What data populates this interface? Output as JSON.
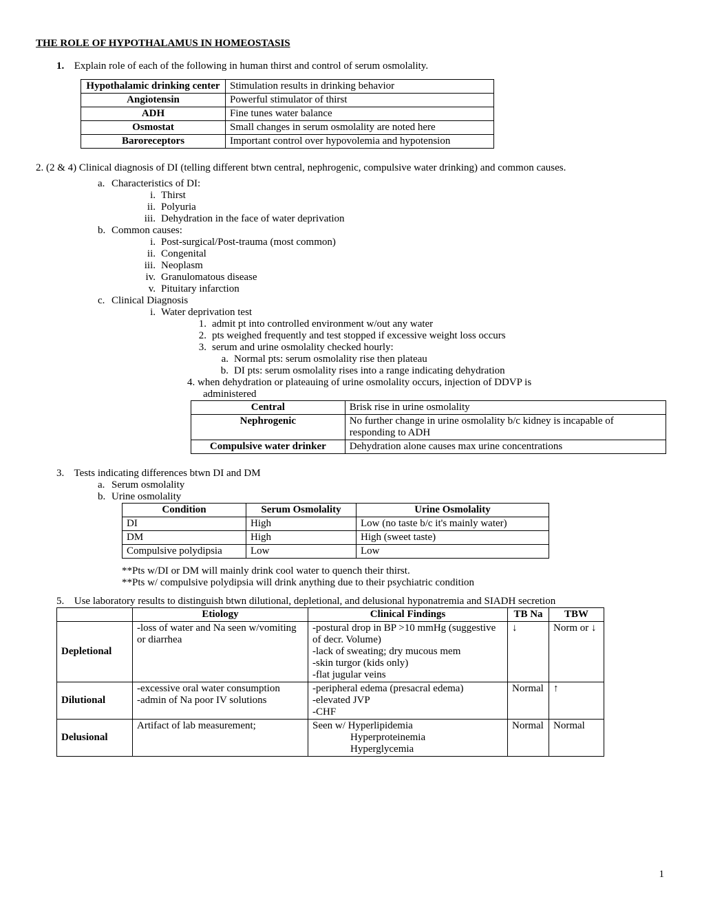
{
  "title": "THE ROLE OF HYPOTHALAMUS IN HOMEOSTASIS",
  "q1": {
    "num": "1.",
    "text": "Explain role of each of the following in human thirst and control of serum osmolality.",
    "rows": [
      [
        "Hypothalamic drinking center",
        "Stimulation results in drinking behavior"
      ],
      [
        "Angiotensin",
        "Powerful stimulator of thirst"
      ],
      [
        "ADH",
        "Fine tunes water balance"
      ],
      [
        "Osmostat",
        "Small changes in serum osmolality are noted here"
      ],
      [
        "Baroreceptors",
        "Important control over hypovolemia and hypotension"
      ]
    ]
  },
  "q2": {
    "intro": "2.  (2 & 4) Clinical diagnosis of DI (telling different btwn central, nephrogenic, compulsive water drinking) and common causes.",
    "a": {
      "lbl": "a.",
      "text": "Characteristics of DI:",
      "items": [
        {
          "lbl": "i.",
          "text": "Thirst"
        },
        {
          "lbl": "ii.",
          "text": "Polyuria"
        },
        {
          "lbl": "iii.",
          "text": "Dehydration in the face of water deprivation"
        }
      ]
    },
    "b": {
      "lbl": "b.",
      "text": "Common causes:",
      "items": [
        {
          "lbl": "i.",
          "text": "Post-surgical/Post-trauma (most common)"
        },
        {
          "lbl": "ii.",
          "text": "Congenital"
        },
        {
          "lbl": "iii.",
          "text": "Neoplasm"
        },
        {
          "lbl": "iv.",
          "text": "Granulomatous disease"
        },
        {
          "lbl": "v.",
          "text": "Pituitary infarction"
        }
      ]
    },
    "c": {
      "lbl": "c.",
      "text": "Clinical Diagnosis",
      "i": {
        "lbl": "i.",
        "text": "Water deprivation test",
        "steps": [
          {
            "lbl": "1.",
            "text": "admit pt into controlled environment w/out any water"
          },
          {
            "lbl": "2.",
            "text": "pts weighed frequently and test stopped if excessive weight loss occurs"
          },
          {
            "lbl": "3.",
            "text": "serum and urine osmolality checked hourly:"
          }
        ],
        "ab": [
          {
            "lbl": "a.",
            "text": "Normal pts: serum osmolality rise then plateau"
          },
          {
            "lbl": "b.",
            "text": "DI pts: serum osmolality rises into a range indicating dehydration"
          }
        ],
        "step4a": "4. when dehydration or plateauing of urine osmolality occurs, injection of DDVP is",
        "step4b": "administered"
      }
    },
    "ddvp": [
      [
        "Central",
        "Brisk rise in urine osmolality"
      ],
      [
        "Nephrogenic",
        "No further change in urine osmolality b/c kidney is incapable of responding to ADH"
      ],
      [
        "Compulsive water drinker",
        "Dehydration alone causes max urine concentrations"
      ]
    ]
  },
  "q3": {
    "num": "3.",
    "text": "Tests indicating differences btwn DI and DM",
    "a": {
      "lbl": "a.",
      "text": "Serum osmolality"
    },
    "b": {
      "lbl": "b.",
      "text": "Urine osmolality"
    },
    "headers": [
      "Condition",
      "Serum Osmolality",
      "Urine Osmolality"
    ],
    "rows": [
      [
        "DI",
        "High",
        "Low (no taste b/c it's mainly water)"
      ],
      [
        "DM",
        "High",
        "High (sweet taste)"
      ],
      [
        "Compulsive polydipsia",
        "Low",
        "Low"
      ]
    ],
    "note1": "**Pts w/DI or DM will mainly drink cool water to quench their thirst.",
    "note2": "**Pts w/ compulsive polydipsia will drink anything due to their psychiatric condition"
  },
  "q5": {
    "num": "5.",
    "text": "Use laboratory results to distinguish btwn dilutional, depletional, and delusional hyponatremia and SIADH secretion",
    "headers": [
      "",
      "Etiology",
      "Clinical Findings",
      "TB Na",
      "TBW"
    ],
    "rows": [
      {
        "label": "Depletional",
        "etiology": "-loss of water and Na seen w/vomiting or diarrhea",
        "clinical": [
          "-postural drop in BP >10 mmHg (suggestive of decr. Volume)",
          "-lack of sweating; dry mucous mem",
          "-skin turgor (kids only)",
          "-flat jugular veins"
        ],
        "tbna": "↓",
        "tbw": "Norm or ↓"
      },
      {
        "label": "Dilutional",
        "etiology": "-excessive oral water consumption\n-admin of Na poor IV solutions",
        "clinical": [
          "-peripheral edema (presacral edema)",
          "-elevated JVP",
          "-CHF"
        ],
        "tbna": "Normal",
        "tbw": "↑"
      },
      {
        "label": "Delusional",
        "etiology": "Artifact of lab measurement;",
        "clinical": [
          "Seen w/ Hyperlipidemia"
        ],
        "clinical_indent": [
          "Hyperproteinemia",
          "Hyperglycemia"
        ],
        "tbna": "Normal",
        "tbw": "Normal"
      }
    ]
  },
  "page": "1"
}
